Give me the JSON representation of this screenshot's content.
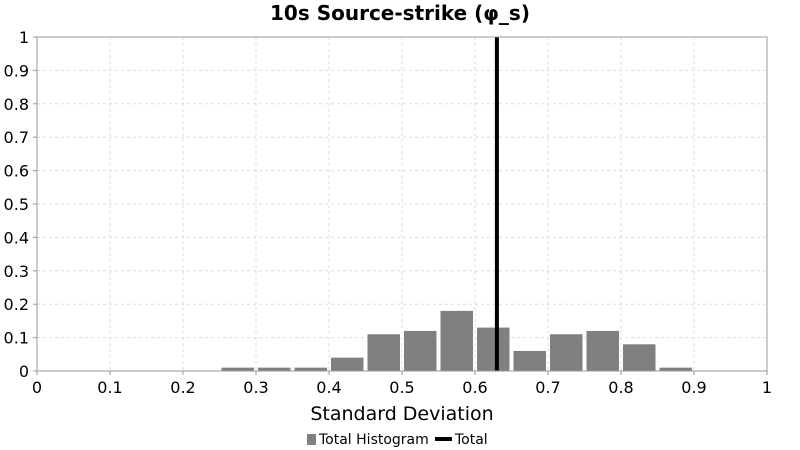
{
  "chart_data": {
    "type": "bar",
    "title": "10s Source-strike (φ_s)",
    "xlabel": "Standard Deviation",
    "ylabel": "",
    "xlim": [
      0,
      1
    ],
    "ylim": [
      0,
      1
    ],
    "x_ticks": [
      "0",
      "0.1",
      "0.2",
      "0.3",
      "0.4",
      "0.5",
      "0.6",
      "0.7",
      "0.8",
      "0.9",
      "1"
    ],
    "y_ticks": [
      "0",
      "0.1",
      "0.2",
      "0.3",
      "0.4",
      "0.5",
      "0.6",
      "0.7",
      "0.8",
      "0.9",
      "1"
    ],
    "grid": true,
    "bin_width": 0.05,
    "series": [
      {
        "name": "Total Histogram",
        "color": "#808080",
        "bin_centers": [
          0.275,
          0.325,
          0.375,
          0.425,
          0.475,
          0.525,
          0.575,
          0.625,
          0.675,
          0.725,
          0.775,
          0.825,
          0.875
        ],
        "values": [
          0.01,
          0.01,
          0.01,
          0.04,
          0.11,
          0.12,
          0.18,
          0.13,
          0.06,
          0.11,
          0.12,
          0.08,
          0.01
        ]
      },
      {
        "name": "Total",
        "type": "vline",
        "color": "#000000",
        "x": 0.63
      }
    ],
    "legend": {
      "position": "bottom-center"
    }
  }
}
